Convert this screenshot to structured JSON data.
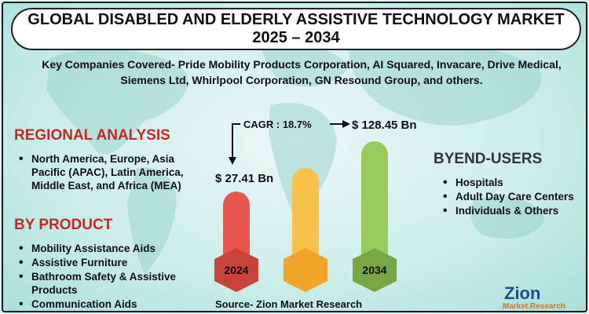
{
  "title": {
    "line1": "GLOBAL DISABLED AND ELDERLY ASSISTIVE TECHNOLOGY MARKET",
    "line2": "2025 – 2034"
  },
  "companies_text": "Key Companies Covered- Pride Mobility Products Corporation, AI Squared, Invacare, Drive Medical, Siemens Ltd, Whirlpool Corporation, GN Resound Group, and others.",
  "regional": {
    "heading": "REGIONAL ANALYSIS",
    "items": [
      "North America, Europe, Asia Pacific (APAC), Latin America, Middle East, and Africa (MEA)"
    ]
  },
  "product": {
    "heading": "BY PRODUCT",
    "items": [
      "Mobility Assistance Aids",
      "Assistive Furniture",
      "Bathroom Safety & Assistive Products",
      "Communication Aids"
    ]
  },
  "end_users": {
    "heading": "BYEND-USERS",
    "items": [
      "Hospitals",
      "Adult Day Care Centers",
      "Individuals & Others"
    ]
  },
  "chart": {
    "cagr_label": "CAGR : 18.7%",
    "start_value_label": "$ 27.41 Bn",
    "end_value_label": "$ 128.45 Bn",
    "start_year": "2024",
    "end_year": "2034",
    "colors": {
      "red": "#e8574f",
      "orange": "#f7b233",
      "green": "#8cbf4f"
    }
  },
  "source": "Source- Zion Market Research",
  "logo": {
    "word": "Zion",
    "sub": "Market.Research"
  }
}
